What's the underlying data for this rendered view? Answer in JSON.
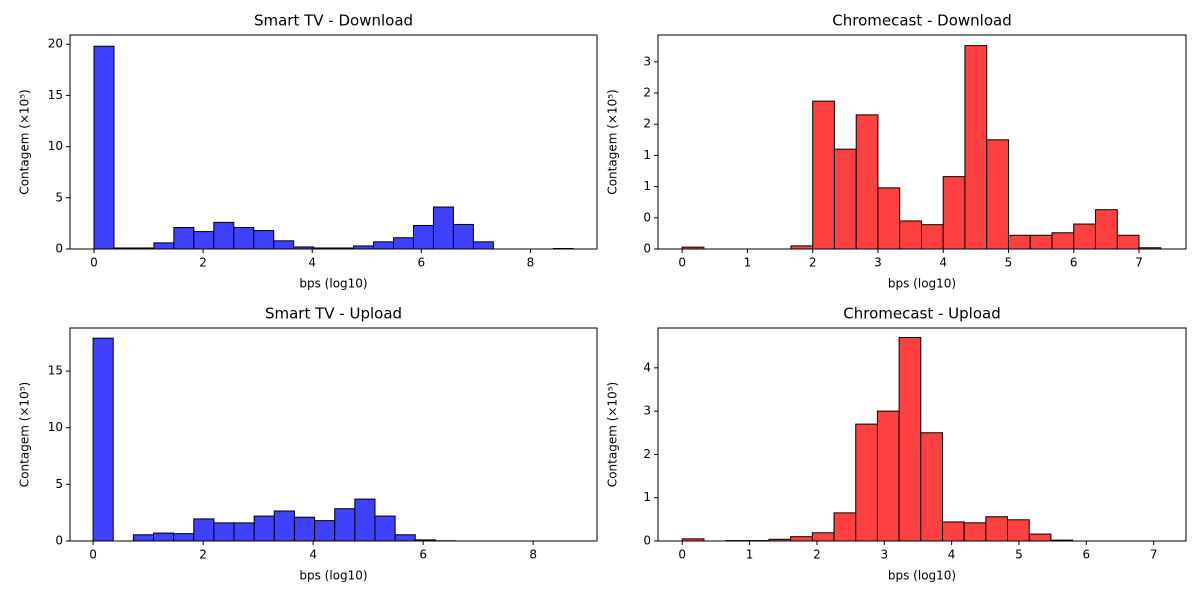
{
  "chart_data": [
    {
      "type": "histogram",
      "title": "Smart TV - Download",
      "xlabel": "bps (log10)",
      "ylabel": "Contagem (×10⁵)",
      "color": "#4040ff",
      "bins": [
        0,
        0.366,
        0.732,
        1.098,
        1.464,
        1.83,
        2.196,
        2.562,
        2.928,
        3.294,
        3.66,
        4.026,
        4.392,
        4.758,
        5.124,
        5.49,
        5.856,
        6.222,
        6.588,
        6.954,
        7.32,
        7.686,
        8.052,
        8.418,
        8.784
      ],
      "values": [
        19.8,
        0.1,
        0.1,
        0.6,
        2.1,
        1.7,
        2.6,
        2.1,
        1.8,
        0.8,
        0.2,
        0.1,
        0.1,
        0.3,
        0.7,
        1.1,
        2.3,
        4.1,
        2.4,
        0.7,
        0,
        0,
        0,
        0.05
      ],
      "xlim": [
        -0.44,
        9.22
      ],
      "ylim": [
        0,
        20.9
      ],
      "xticks": [
        0,
        2,
        4,
        6,
        8
      ],
      "yticks": [
        0,
        5,
        10,
        15,
        20
      ]
    },
    {
      "type": "histogram",
      "title": "Chromecast - Download",
      "xlabel": "bps (log10)",
      "ylabel": "Contagem (×10⁵)",
      "color": "#ff4040",
      "bins": [
        0,
        0.333,
        0.667,
        1,
        1.333,
        1.667,
        2,
        2.333,
        2.667,
        3,
        3.333,
        3.667,
        4,
        4.333,
        4.667,
        5,
        5.333,
        5.667,
        6,
        6.333,
        6.667,
        7,
        7.333
      ],
      "values": [
        0.03,
        0,
        0,
        0,
        0,
        0.05,
        2.37,
        1.6,
        2.15,
        0.98,
        0.45,
        0.39,
        1.16,
        3.26,
        1.75,
        0.22,
        0.22,
        0.26,
        0.4,
        0.63,
        0.22,
        0.02
      ],
      "xlim": [
        -0.37,
        7.72
      ],
      "ylim": [
        0,
        3.43
      ],
      "xticks": [
        0,
        1,
        2,
        3,
        4,
        5,
        6,
        7
      ],
      "yticks": [
        0,
        {
          "value": 0.5,
          "label": "0"
        },
        {
          "value": 1,
          "label": "1"
        },
        {
          "value": 1.5,
          "label": "1"
        },
        {
          "value": 2,
          "label": "2"
        },
        {
          "value": 2.5,
          "label": "2"
        },
        {
          "value": 3,
          "label": "3"
        }
      ]
    },
    {
      "type": "histogram",
      "title": "Smart TV - Upload",
      "xlabel": "bps (log10)",
      "ylabel": "Contagem (×10⁵)",
      "color": "#4040ff",
      "bins": [
        0,
        0.366,
        0.732,
        1.098,
        1.464,
        1.83,
        2.196,
        2.562,
        2.928,
        3.294,
        3.66,
        4.026,
        4.392,
        4.758,
        5.124,
        5.49,
        5.856,
        6.222,
        6.588,
        6.954,
        7.32,
        7.686,
        8.052,
        8.418,
        8.784
      ],
      "values": [
        17.9,
        0,
        0.55,
        0.7,
        0.65,
        1.95,
        1.6,
        1.6,
        2.2,
        2.65,
        2.1,
        1.8,
        2.85,
        3.7,
        2.2,
        0.55,
        0.1,
        0.02,
        0,
        0,
        0,
        0,
        0,
        0
      ],
      "xlim": [
        -0.42,
        9.16
      ],
      "ylim": [
        0,
        18.8
      ],
      "xticks": [
        0,
        2,
        4,
        6,
        8
      ],
      "yticks": [
        0,
        5,
        10,
        15
      ]
    },
    {
      "type": "histogram",
      "title": "Chromecast - Upload",
      "xlabel": "bps (log10)",
      "ylabel": "Contagem (×10⁵)",
      "color": "#ff4040",
      "bins": [
        0,
        0.322,
        0.644,
        0.966,
        1.288,
        1.61,
        1.932,
        2.254,
        2.576,
        2.898,
        3.22,
        3.542,
        3.864,
        4.186,
        4.508,
        4.83,
        5.152,
        5.474,
        5.796,
        6.118,
        6.44,
        6.762,
        7.084
      ],
      "values": [
        0.05,
        0,
        0.01,
        0.01,
        0.04,
        0.1,
        0.19,
        0.65,
        2.7,
        3.0,
        4.7,
        2.5,
        0.44,
        0.42,
        0.56,
        0.49,
        0.16,
        0.02,
        0,
        0,
        0,
        0
      ],
      "xlim": [
        -0.36,
        7.48
      ],
      "ylim": [
        0,
        4.92
      ],
      "xticks": [
        0,
        1,
        2,
        3,
        4,
        5,
        6,
        7
      ],
      "yticks": [
        0,
        1,
        2,
        3,
        4
      ]
    }
  ]
}
